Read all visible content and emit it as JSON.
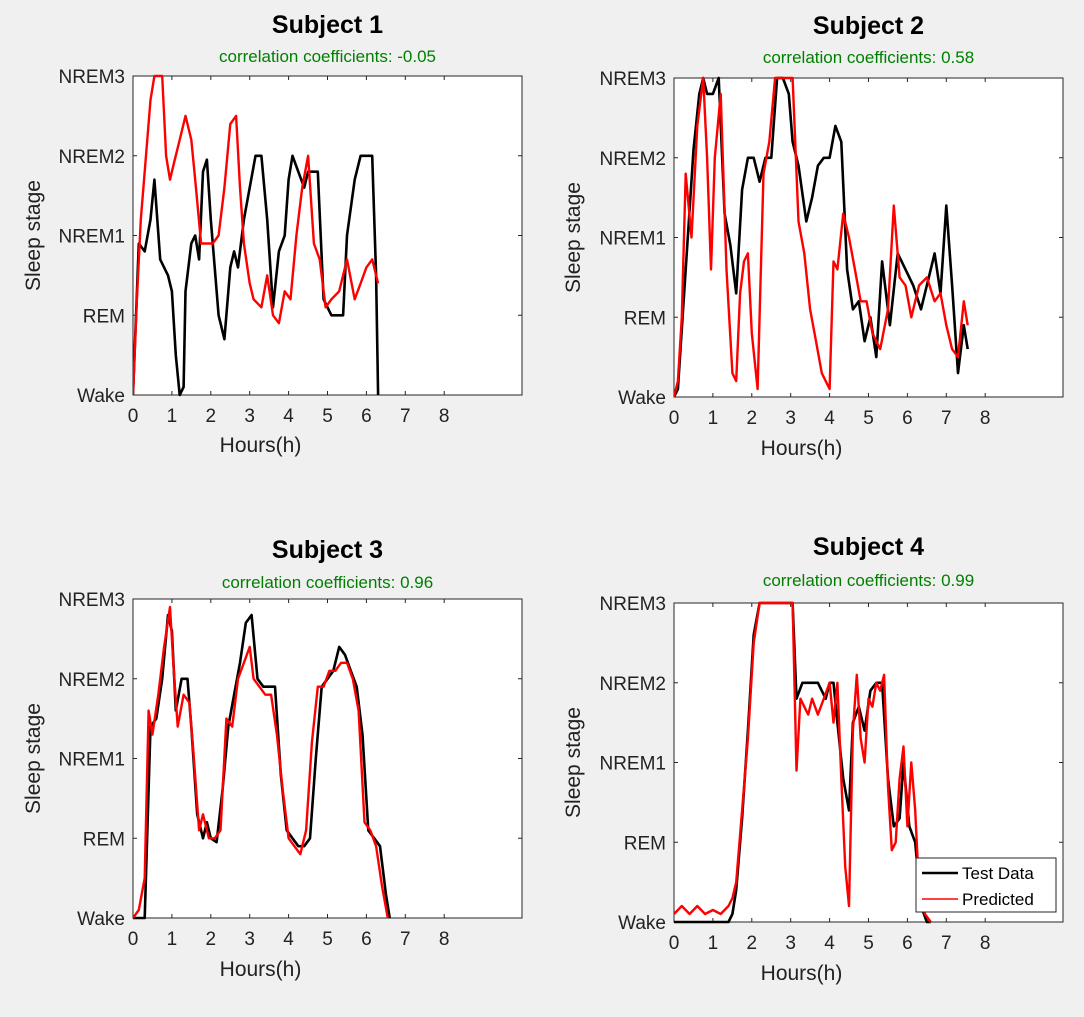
{
  "chart_data": [
    {
      "type": "line",
      "title": "Subject 1",
      "subtitle": "correlation coefficients: -0.05",
      "xlabel": "Hours(h)",
      "ylabel": "Sleep stage",
      "xlim": [
        0,
        10
      ],
      "ylim": [
        0,
        4
      ],
      "x_ticks": [
        0,
        1,
        2,
        3,
        4,
        5,
        6,
        7,
        8
      ],
      "y_ticks": [
        0,
        1,
        2,
        3,
        4
      ],
      "y_tick_labels": [
        "Wake",
        "REM",
        "NREM1",
        "NREM2",
        "NREM3"
      ],
      "legend": false,
      "series": [
        {
          "color": "#000000",
          "x": [
            0,
            0.15,
            0.3,
            0.45,
            0.55,
            0.7,
            0.9,
            1.0,
            1.1,
            1.2,
            1.3,
            1.35,
            1.5,
            1.6,
            1.7,
            1.8,
            1.9,
            2.0,
            2.1,
            2.2,
            2.35,
            2.5,
            2.6,
            2.7,
            2.85,
            3.0,
            3.15,
            3.3,
            3.45,
            3.6,
            3.75,
            3.9,
            4.0,
            4.1,
            4.25,
            4.4,
            4.5,
            4.6,
            4.75,
            4.9,
            5.1,
            5.3,
            5.4,
            5.5,
            5.7,
            5.85,
            6.0,
            6.15,
            6.25,
            6.3
          ],
          "y": [
            0,
            1.9,
            1.8,
            2.2,
            2.7,
            1.7,
            1.5,
            1.3,
            0.5,
            0,
            0.1,
            1.3,
            1.9,
            2.0,
            1.7,
            2.8,
            2.95,
            2.2,
            1.6,
            1.0,
            0.7,
            1.6,
            1.8,
            1.6,
            2.2,
            2.6,
            3.0,
            3.0,
            2.2,
            1.1,
            1.8,
            2.0,
            2.7,
            3.0,
            2.8,
            2.6,
            2.8,
            2.8,
            2.8,
            1.2,
            1.0,
            1.0,
            1.0,
            2.0,
            2.7,
            3.0,
            3.0,
            3.0,
            1.5,
            0
          ]
        },
        {
          "color": "#ff0000",
          "x": [
            0,
            0.1,
            0.2,
            0.3,
            0.45,
            0.55,
            0.65,
            0.75,
            0.85,
            0.95,
            1.05,
            1.2,
            1.35,
            1.5,
            1.6,
            1.75,
            1.9,
            2.05,
            2.2,
            2.35,
            2.5,
            2.65,
            2.75,
            2.85,
            3.0,
            3.1,
            3.3,
            3.45,
            3.6,
            3.75,
            3.9,
            4.05,
            4.2,
            4.35,
            4.5,
            4.65,
            4.8,
            4.95,
            5.1,
            5.3,
            5.5,
            5.7,
            5.85,
            6.0,
            6.15,
            6.3
          ],
          "y": [
            0,
            1.2,
            2.2,
            2.8,
            3.7,
            4.0,
            4.0,
            4.0,
            3.0,
            2.7,
            2.9,
            3.2,
            3.5,
            3.2,
            2.7,
            1.9,
            1.9,
            1.9,
            2.0,
            2.6,
            3.4,
            3.5,
            2.6,
            1.9,
            1.4,
            1.2,
            1.1,
            1.5,
            1.0,
            0.9,
            1.3,
            1.2,
            2.0,
            2.6,
            3.0,
            1.9,
            1.7,
            1.1,
            1.2,
            1.3,
            1.7,
            1.2,
            1.4,
            1.6,
            1.7,
            1.4
          ]
        }
      ]
    },
    {
      "type": "line",
      "title": "Subject 2",
      "subtitle": "correlation coefficients: 0.58",
      "xlabel": "Hours(h)",
      "ylabel": "Sleep stage",
      "xlim": [
        0,
        10
      ],
      "ylim": [
        0,
        4
      ],
      "x_ticks": [
        0,
        1,
        2,
        3,
        4,
        5,
        6,
        7,
        8
      ],
      "y_ticks": [
        0,
        1,
        2,
        3,
        4
      ],
      "y_tick_labels": [
        "Wake",
        "REM",
        "NREM1",
        "NREM2",
        "NREM3"
      ],
      "legend": false,
      "series": [
        {
          "color": "#000000",
          "x": [
            0,
            0.1,
            0.3,
            0.5,
            0.65,
            0.75,
            0.85,
            1.0,
            1.15,
            1.3,
            1.45,
            1.6,
            1.75,
            1.9,
            2.05,
            2.2,
            2.35,
            2.5,
            2.65,
            2.8,
            2.95,
            3.05,
            3.2,
            3.4,
            3.55,
            3.7,
            3.85,
            4.0,
            4.15,
            4.3,
            4.45,
            4.6,
            4.75,
            4.9,
            5.05,
            5.2,
            5.35,
            5.55,
            5.75,
            5.95,
            6.15,
            6.35,
            6.55,
            6.7,
            6.85,
            7.0,
            7.15,
            7.3,
            7.45,
            7.55
          ],
          "y": [
            0,
            0.1,
            1.6,
            3.1,
            3.8,
            4.0,
            3.8,
            3.8,
            4.0,
            2.3,
            1.9,
            1.3,
            2.6,
            3.0,
            3.0,
            2.7,
            3.0,
            3.0,
            4.0,
            4.0,
            3.8,
            3.2,
            2.9,
            2.2,
            2.5,
            2.9,
            3.0,
            3.0,
            3.4,
            3.2,
            1.6,
            1.1,
            1.2,
            0.7,
            1.0,
            0.5,
            1.7,
            0.9,
            1.8,
            1.6,
            1.4,
            1.1,
            1.5,
            1.8,
            1.3,
            2.4,
            1.4,
            0.3,
            0.9,
            0.6
          ]
        },
        {
          "color": "#ff0000",
          "x": [
            0,
            0.1,
            0.2,
            0.3,
            0.45,
            0.6,
            0.75,
            0.85,
            0.95,
            1.05,
            1.2,
            1.35,
            1.5,
            1.6,
            1.7,
            1.8,
            1.9,
            2.0,
            2.15,
            2.3,
            2.45,
            2.6,
            2.75,
            2.9,
            3.05,
            3.2,
            3.35,
            3.5,
            3.65,
            3.8,
            4.0,
            4.1,
            4.2,
            4.35,
            4.5,
            4.65,
            4.8,
            4.95,
            5.1,
            5.3,
            5.5,
            5.65,
            5.8,
            5.95,
            6.1,
            6.3,
            6.5,
            6.7,
            6.85,
            7.0,
            7.15,
            7.3,
            7.45,
            7.55
          ],
          "y": [
            0,
            0.2,
            1.0,
            2.8,
            2.0,
            3.4,
            4.0,
            3.0,
            1.6,
            3.0,
            3.8,
            1.6,
            0.3,
            0.2,
            1.3,
            1.7,
            1.8,
            0.8,
            0.1,
            2.8,
            3.2,
            4.0,
            4.0,
            4.0,
            4.0,
            2.2,
            1.8,
            1.1,
            0.7,
            0.3,
            0.1,
            1.7,
            1.6,
            2.3,
            2.0,
            1.6,
            1.2,
            1.2,
            0.8,
            0.6,
            1.1,
            2.4,
            1.5,
            1.4,
            1.0,
            1.4,
            1.5,
            1.2,
            1.3,
            0.9,
            0.6,
            0.5,
            1.2,
            0.9
          ]
        }
      ]
    },
    {
      "type": "line",
      "title": "Subject 3",
      "subtitle": "correlation coefficients: 0.96",
      "xlabel": "Hours(h)",
      "ylabel": "Sleep stage",
      "xlim": [
        0,
        10
      ],
      "ylim": [
        0,
        4
      ],
      "x_ticks": [
        0,
        1,
        2,
        3,
        4,
        5,
        6,
        7,
        8
      ],
      "y_ticks": [
        0,
        1,
        2,
        3,
        4
      ],
      "y_tick_labels": [
        "Wake",
        "REM",
        "NREM1",
        "NREM2",
        "NREM3"
      ],
      "legend": false,
      "series": [
        {
          "color": "#000000",
          "x": [
            0,
            0.15,
            0.3,
            0.45,
            0.6,
            0.75,
            0.9,
            1.0,
            1.1,
            1.25,
            1.4,
            1.5,
            1.65,
            1.8,
            1.9,
            2.0,
            2.15,
            2.3,
            2.45,
            2.6,
            2.75,
            2.9,
            3.05,
            3.2,
            3.35,
            3.5,
            3.65,
            3.8,
            3.95,
            4.1,
            4.25,
            4.4,
            4.55,
            4.7,
            4.85,
            5.0,
            5.15,
            5.3,
            5.45,
            5.6,
            5.75,
            5.9,
            6.05,
            6.2,
            6.35,
            6.5,
            6.6
          ],
          "y": [
            0,
            0,
            0,
            2.4,
            2.5,
            3.0,
            3.8,
            3.6,
            2.6,
            3.0,
            3.0,
            2.4,
            1.3,
            1.0,
            1.2,
            1.0,
            0.95,
            1.6,
            2.4,
            2.8,
            3.2,
            3.7,
            3.8,
            3.0,
            2.9,
            2.9,
            2.9,
            1.8,
            1.1,
            1.0,
            0.9,
            0.9,
            1.0,
            2.0,
            2.9,
            3.0,
            3.1,
            3.4,
            3.3,
            3.1,
            2.9,
            2.3,
            1.1,
            1.0,
            0.9,
            0.3,
            0
          ]
        },
        {
          "color": "#ff0000",
          "x": [
            0,
            0.15,
            0.3,
            0.4,
            0.5,
            0.65,
            0.8,
            0.95,
            1.05,
            1.15,
            1.3,
            1.45,
            1.55,
            1.7,
            1.8,
            1.95,
            2.1,
            2.25,
            2.4,
            2.55,
            2.7,
            2.85,
            3.0,
            3.1,
            3.25,
            3.4,
            3.55,
            3.7,
            3.85,
            4.0,
            4.15,
            4.3,
            4.45,
            4.6,
            4.75,
            4.9,
            5.05,
            5.2,
            5.35,
            5.5,
            5.65,
            5.8,
            5.95,
            6.1,
            6.25,
            6.4,
            6.55
          ],
          "y": [
            0,
            0.1,
            0.5,
            2.6,
            2.3,
            2.8,
            3.4,
            3.9,
            3.1,
            2.4,
            2.8,
            2.7,
            2.1,
            1.1,
            1.3,
            1.0,
            1.0,
            1.1,
            2.5,
            2.4,
            3.0,
            3.2,
            3.4,
            3.0,
            2.9,
            2.8,
            2.8,
            2.3,
            1.6,
            1.0,
            0.9,
            0.8,
            1.1,
            2.2,
            2.9,
            2.9,
            3.1,
            3.1,
            3.2,
            3.2,
            3.0,
            2.6,
            1.2,
            1.1,
            0.9,
            0.4,
            0
          ]
        }
      ]
    },
    {
      "type": "line",
      "title": "Subject 4",
      "subtitle": "correlation coefficients: 0.99",
      "xlabel": "Hours(h)",
      "ylabel": "Sleep stage",
      "xlim": [
        0,
        10
      ],
      "ylim": [
        0,
        4
      ],
      "x_ticks": [
        0,
        1,
        2,
        3,
        4,
        5,
        6,
        7,
        8
      ],
      "y_ticks": [
        0,
        1,
        2,
        3,
        4
      ],
      "y_tick_labels": [
        "Wake",
        "REM",
        "NREM1",
        "NREM2",
        "NREM3"
      ],
      "legend": true,
      "legend_position": "bottom-right",
      "series": [
        {
          "name": "Test Data",
          "color": "#000000",
          "x": [
            0,
            0.5,
            1.0,
            1.4,
            1.5,
            1.6,
            1.75,
            1.9,
            2.05,
            2.2,
            2.5,
            2.8,
            3.05,
            3.15,
            3.3,
            3.5,
            3.7,
            3.9,
            4.0,
            4.1,
            4.2,
            4.35,
            4.5,
            4.6,
            4.75,
            4.9,
            5.05,
            5.2,
            5.35,
            5.5,
            5.65,
            5.8,
            5.9,
            6.05,
            6.2,
            6.35,
            6.5,
            6.6
          ],
          "y": [
            0,
            0,
            0,
            0,
            0.1,
            0.4,
            1.3,
            2.4,
            3.6,
            4.0,
            4.0,
            4.0,
            4.0,
            2.8,
            3.0,
            3.0,
            3.0,
            2.8,
            3.0,
            3.0,
            2.5,
            1.8,
            1.4,
            2.5,
            2.7,
            2.4,
            2.9,
            3.0,
            3.0,
            1.8,
            1.2,
            1.3,
            2.0,
            1.2,
            1.0,
            0.2,
            0,
            0
          ]
        },
        {
          "name": "Predicted",
          "color": "#ff0000",
          "x": [
            0,
            0.2,
            0.4,
            0.6,
            0.8,
            1.0,
            1.2,
            1.4,
            1.5,
            1.6,
            1.75,
            1.9,
            2.05,
            2.2,
            2.5,
            2.8,
            3.05,
            3.15,
            3.25,
            3.35,
            3.45,
            3.55,
            3.7,
            3.85,
            4.0,
            4.1,
            4.2,
            4.3,
            4.4,
            4.5,
            4.6,
            4.7,
            4.8,
            4.9,
            5.0,
            5.1,
            5.2,
            5.3,
            5.4,
            5.5,
            5.6,
            5.7,
            5.8,
            5.9,
            6.0,
            6.1,
            6.2,
            6.3,
            6.45,
            6.6
          ],
          "y": [
            0.1,
            0.2,
            0.1,
            0.2,
            0.1,
            0.15,
            0.1,
            0.2,
            0.3,
            0.5,
            1.4,
            2.3,
            3.5,
            4.0,
            4.0,
            4.0,
            4.0,
            1.9,
            2.8,
            2.7,
            2.6,
            2.8,
            2.6,
            2.8,
            3.0,
            2.5,
            3.0,
            1.8,
            0.7,
            0.2,
            2.4,
            3.1,
            2.3,
            2.0,
            2.8,
            2.7,
            3.0,
            2.9,
            3.1,
            1.7,
            0.9,
            1.0,
            1.8,
            2.2,
            1.2,
            2.0,
            1.4,
            0.4,
            0.1,
            0
          ]
        }
      ]
    }
  ]
}
